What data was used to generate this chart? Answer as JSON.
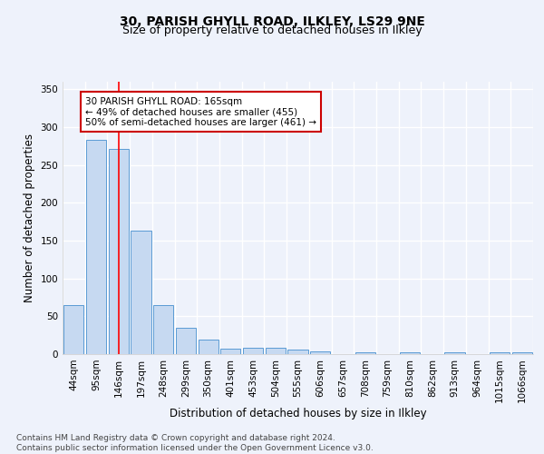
{
  "title_line1": "30, PARISH GHYLL ROAD, ILKLEY, LS29 9NE",
  "title_line2": "Size of property relative to detached houses in Ilkley",
  "xlabel": "Distribution of detached houses by size in Ilkley",
  "ylabel": "Number of detached properties",
  "categories": [
    "44sqm",
    "95sqm",
    "146sqm",
    "197sqm",
    "248sqm",
    "299sqm",
    "350sqm",
    "401sqm",
    "453sqm",
    "504sqm",
    "555sqm",
    "606sqm",
    "657sqm",
    "708sqm",
    "759sqm",
    "810sqm",
    "862sqm",
    "913sqm",
    "964sqm",
    "1015sqm",
    "1066sqm"
  ],
  "bar_heights": [
    65,
    283,
    271,
    163,
    65,
    35,
    19,
    7,
    9,
    9,
    6,
    4,
    0,
    3,
    0,
    3,
    0,
    3,
    0,
    2,
    3
  ],
  "bar_color": "#c6d9f1",
  "bar_edge_color": "#5b9bd5",
  "red_line_index": 2,
  "red_line_color": "#ff0000",
  "annotation_text": "30 PARISH GHYLL ROAD: 165sqm\n← 49% of detached houses are smaller (455)\n50% of semi-detached houses are larger (461) →",
  "annotation_box_color": "#ffffff",
  "annotation_box_edge": "#cc0000",
  "ylim": [
    0,
    360
  ],
  "yticks": [
    0,
    50,
    100,
    150,
    200,
    250,
    300,
    350
  ],
  "footer_text": "Contains HM Land Registry data © Crown copyright and database right 2024.\nContains public sector information licensed under the Open Government Licence v3.0.",
  "bg_color": "#eef2fb",
  "plot_bg_color": "#eef2fb",
  "grid_color": "#ffffff",
  "title_fontsize": 10,
  "subtitle_fontsize": 9,
  "axis_label_fontsize": 8.5,
  "tick_fontsize": 7.5,
  "footer_fontsize": 6.5,
  "annotation_fontsize": 7.5
}
